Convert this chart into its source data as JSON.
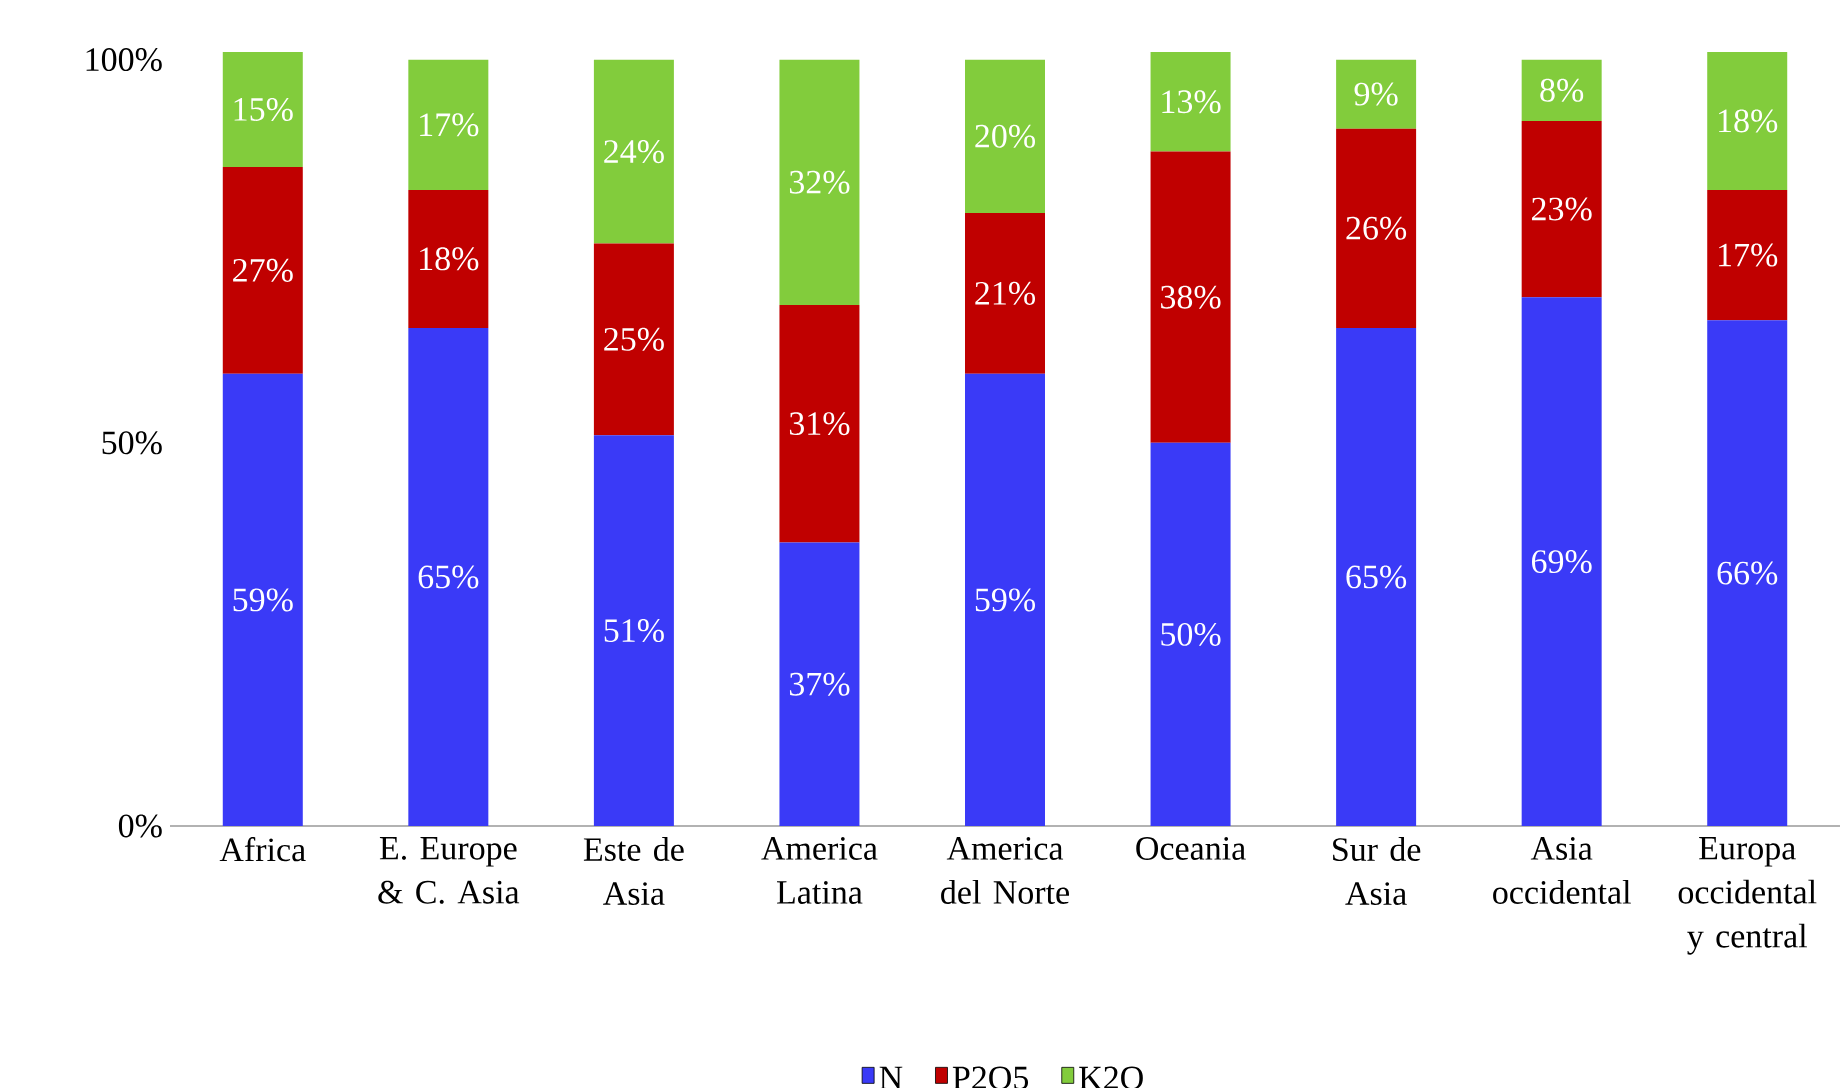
{
  "chart_data": {
    "type": "bar",
    "stacked": true,
    "categories": [
      "Africa",
      "E. Europe & C. Asia",
      "Este de Asia",
      "America Latina",
      "America del Norte",
      "Oceania",
      "Sur de Asia",
      "Asia occidental",
      "Europa occidental y central"
    ],
    "series": [
      {
        "name": "N",
        "color": "#3a3af7",
        "values": [
          59,
          65,
          51,
          37,
          59,
          50,
          65,
          69,
          66
        ],
        "value_labels": [
          "59%",
          "65%",
          "51%",
          "37%",
          "59%",
          "50%",
          "65%",
          "69%",
          "66%"
        ]
      },
      {
        "name": "P2O5",
        "color": "#c00000",
        "values": [
          27,
          18,
          25,
          31,
          21,
          38,
          26,
          23,
          17
        ],
        "value_labels": [
          "27%",
          "18%",
          "25%",
          "31%",
          "21%",
          "38%",
          "26%",
          "23%",
          "17%"
        ]
      },
      {
        "name": "K2O",
        "color": "#82cc3c",
        "values": [
          15,
          17,
          24,
          32,
          20,
          13,
          9,
          8,
          18
        ],
        "value_labels": [
          "15%",
          "17%",
          "24%",
          "32%",
          "20%",
          "13%",
          "9%",
          "8%",
          "18%"
        ]
      }
    ],
    "ylim": [
      0,
      101
    ],
    "yticks": [
      {
        "value": 0,
        "label": "0%"
      },
      {
        "value": 50,
        "label": "50%"
      },
      {
        "value": 100,
        "label": "100%"
      }
    ],
    "grid": false,
    "legend": "bottom"
  }
}
